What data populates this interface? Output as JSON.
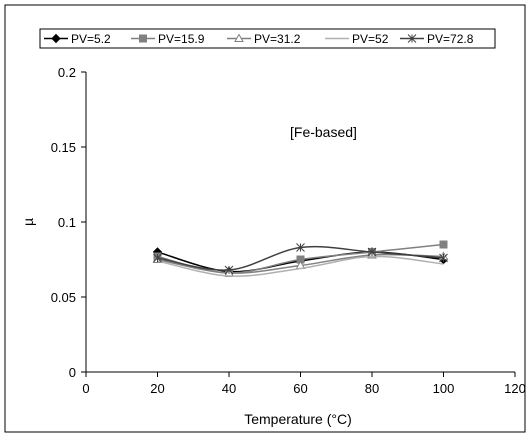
{
  "chart_data": {
    "type": "line",
    "title": "",
    "annotation": "[Fe-based]",
    "xlabel": "Temperature (°C)",
    "ylabel": "µ",
    "xlim": [
      0,
      120
    ],
    "ylim": [
      0,
      0.2
    ],
    "xticks": [
      "0",
      "20",
      "40",
      "60",
      "80",
      "100",
      "120"
    ],
    "yticks": [
      "0",
      "0.05",
      "0.1",
      "0.15",
      "0.2"
    ],
    "grid": false,
    "legend_position": "top",
    "x": [
      20,
      40,
      60,
      80,
      100
    ],
    "series": [
      {
        "name": "PV=5.2",
        "marker": "diamond",
        "color": "#000000",
        "values": [
          0.08,
          0.067,
          0.074,
          0.08,
          0.075
        ]
      },
      {
        "name": "PV=15.9",
        "marker": "square",
        "color": "#808080",
        "values": [
          0.077,
          0.066,
          0.075,
          0.08,
          0.085
        ]
      },
      {
        "name": "PV=31.2",
        "marker": "triangle",
        "color": "#808080",
        "values": [
          0.075,
          0.066,
          0.071,
          0.078,
          0.077
        ]
      },
      {
        "name": "PV=52",
        "marker": "none",
        "color": "#b0b0b0",
        "values": [
          0.074,
          0.064,
          0.069,
          0.077,
          0.072
        ]
      },
      {
        "name": "PV=72.8",
        "marker": "star",
        "color": "#404040",
        "values": [
          0.076,
          0.068,
          0.083,
          0.08,
          0.076
        ]
      }
    ]
  }
}
